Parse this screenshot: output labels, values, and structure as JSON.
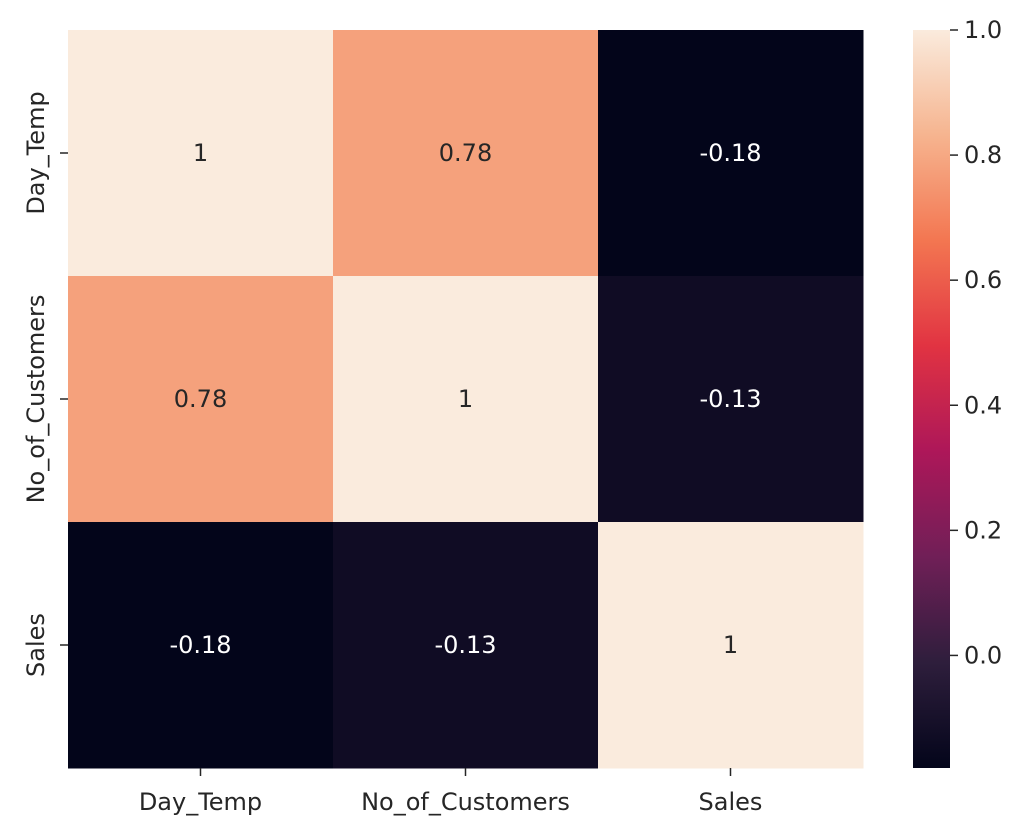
{
  "chart_data": {
    "type": "heatmap",
    "title": "",
    "xlabel": "",
    "ylabel": "",
    "x_categories": [
      "Day_Temp",
      "No_of_Customers",
      "Sales"
    ],
    "y_categories": [
      "Day_Temp",
      "No_of_Customers",
      "Sales"
    ],
    "values": [
      [
        1,
        0.78,
        -0.18
      ],
      [
        0.78,
        1,
        -0.13
      ],
      [
        -0.18,
        -0.13,
        1
      ]
    ],
    "annotations": [
      [
        "1",
        "0.78",
        "-0.18"
      ],
      [
        "0.78",
        "1",
        "-0.13"
      ],
      [
        "-0.18",
        "-0.13",
        "1"
      ]
    ],
    "colorbar": {
      "range": [
        -0.18,
        1.0
      ],
      "ticks": [
        "0.0",
        "0.2",
        "0.4",
        "0.6",
        "0.8",
        "1.0"
      ],
      "tick_values": [
        0.0,
        0.2,
        0.4,
        0.6,
        0.8,
        1.0
      ],
      "colormap": "rocket",
      "colormap_stops": [
        "#03051a",
        "#2e1e3c",
        "#701f57",
        "#ad1759",
        "#e13342",
        "#f37651",
        "#f6b48f",
        "#faebdd"
      ]
    }
  }
}
